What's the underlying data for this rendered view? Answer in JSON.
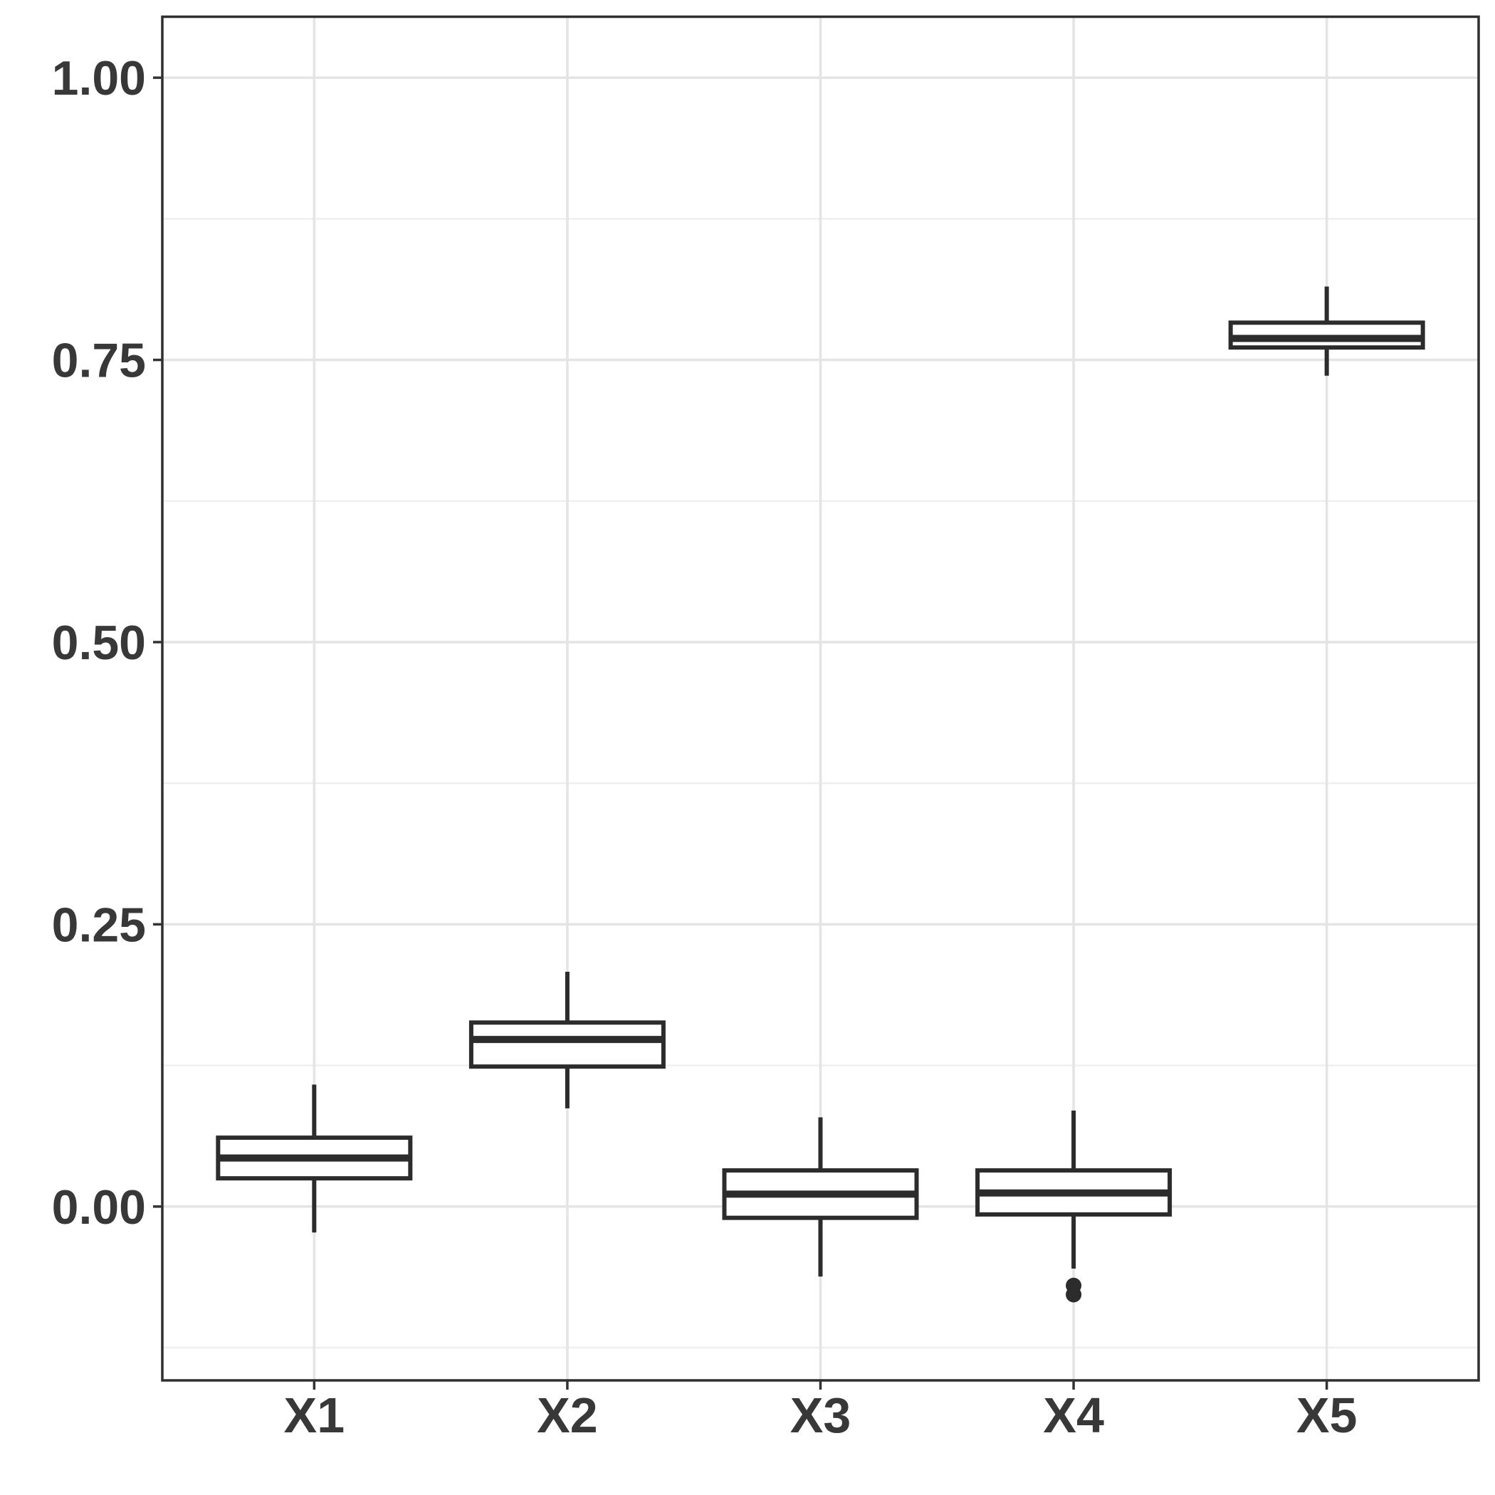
{
  "chart_data": {
    "type": "boxplot",
    "title": "",
    "xlabel": "",
    "ylabel": "",
    "legend_position": "none",
    "categories": [
      "X1",
      "X2",
      "X3",
      "X4",
      "X5"
    ],
    "y_axis": {
      "tick_values": [
        0.0,
        0.25,
        0.5,
        0.75,
        1.0
      ],
      "tick_labels": [
        "0.00",
        "0.25",
        "0.50",
        "0.75",
        "1.00"
      ],
      "minor_tick_values": [
        -0.125,
        0.125,
        0.375,
        0.625,
        0.875
      ],
      "ylim": [
        -0.154,
        1.054
      ]
    },
    "grid": {
      "horizontal_major": true,
      "horizontal_minor": true,
      "vertical_at_categories": true,
      "vertical_minor": false
    },
    "boxes": [
      {
        "category": "X1",
        "whisker_low": -0.023,
        "q1": 0.025,
        "median": 0.043,
        "q3": 0.061,
        "whisker_high": 0.108,
        "outliers": []
      },
      {
        "category": "X2",
        "whisker_low": 0.087,
        "q1": 0.124,
        "median": 0.148,
        "q3": 0.163,
        "whisker_high": 0.208,
        "outliers": []
      },
      {
        "category": "X3",
        "whisker_low": -0.062,
        "q1": -0.01,
        "median": 0.011,
        "q3": 0.032,
        "whisker_high": 0.079,
        "outliers": []
      },
      {
        "category": "X4",
        "whisker_low": -0.055,
        "q1": -0.007,
        "median": 0.012,
        "q3": 0.032,
        "whisker_high": 0.085,
        "outliers": [
          -0.07,
          -0.078
        ]
      },
      {
        "category": "X5",
        "whisker_low": 0.736,
        "q1": 0.761,
        "median": 0.769,
        "q3": 0.783,
        "whisker_high": 0.815,
        "outliers": []
      }
    ],
    "style": {
      "background": "#ffffff",
      "panel_background": "#ffffff",
      "panel_border_color": "#2f2f2f",
      "grid_major_color": "#e4e4e4",
      "grid_minor_color": "#efefef",
      "box_fill": "#ffffff",
      "line_color": "#2c2c2c",
      "tick_color": "#333333",
      "tick_label_color": "#383838"
    }
  }
}
